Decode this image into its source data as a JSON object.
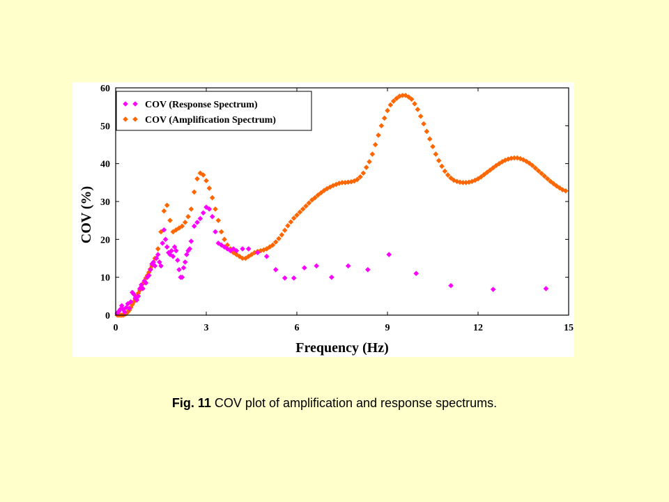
{
  "caption": {
    "label": "Fig. 11",
    "text": "COV plot of amplification and response spectrums."
  },
  "chart_data": {
    "type": "scatter",
    "xlabel": "Frequency (Hz)",
    "ylabel": "COV (%)",
    "xlim": [
      0,
      15
    ],
    "ylim": [
      0,
      60
    ],
    "xticks": [
      0,
      3,
      6,
      9,
      12,
      15
    ],
    "yticks": [
      0,
      10,
      20,
      30,
      40,
      50,
      60
    ],
    "grid": false,
    "legend_position": "top-left",
    "marker": "diamond",
    "series": [
      {
        "name": "COV (Response Spectrum)",
        "color": "#FF00FF",
        "points": [
          [
            0.05,
            0.5
          ],
          [
            0.1,
            1.0
          ],
          [
            0.15,
            1.5
          ],
          [
            0.2,
            2.5
          ],
          [
            0.25,
            1.5
          ],
          [
            0.3,
            0.8
          ],
          [
            0.35,
            2.0
          ],
          [
            0.4,
            3.0
          ],
          [
            0.45,
            1.8
          ],
          [
            0.5,
            3.5
          ],
          [
            0.55,
            6.0
          ],
          [
            0.6,
            5.5
          ],
          [
            0.65,
            4.5
          ],
          [
            0.7,
            4.0
          ],
          [
            0.75,
            5.0
          ],
          [
            0.8,
            7.0
          ],
          [
            0.85,
            8.0
          ],
          [
            0.9,
            7.0
          ],
          [
            0.95,
            9.0
          ],
          [
            1.0,
            8.5
          ],
          [
            1.05,
            10.0
          ],
          [
            1.1,
            10.5
          ],
          [
            1.15,
            12.0
          ],
          [
            1.2,
            13.5
          ],
          [
            1.25,
            14.0
          ],
          [
            1.3,
            13.0
          ],
          [
            1.35,
            15.0
          ],
          [
            1.4,
            16.0
          ],
          [
            1.45,
            14.0
          ],
          [
            1.5,
            13.0
          ],
          [
            1.55,
            19.0
          ],
          [
            1.6,
            22.5
          ],
          [
            1.65,
            20.0
          ],
          [
            1.7,
            18.0
          ],
          [
            1.75,
            16.5
          ],
          [
            1.8,
            16.0
          ],
          [
            1.85,
            17.0
          ],
          [
            1.9,
            15.5
          ],
          [
            1.95,
            18.0
          ],
          [
            2.0,
            17.0
          ],
          [
            2.05,
            14.5
          ],
          [
            2.1,
            12.0
          ],
          [
            2.15,
            10.0
          ],
          [
            2.2,
            10.0
          ],
          [
            2.25,
            12.5
          ],
          [
            2.3,
            14.0
          ],
          [
            2.35,
            16.0
          ],
          [
            2.4,
            17.0
          ],
          [
            2.45,
            17.5
          ],
          [
            2.5,
            19.5
          ],
          [
            2.6,
            23.5
          ],
          [
            2.7,
            24.5
          ],
          [
            2.8,
            25.5
          ],
          [
            2.9,
            27.0
          ],
          [
            3.0,
            28.5
          ],
          [
            3.1,
            28.0
          ],
          [
            3.2,
            26.0
          ],
          [
            3.3,
            22.0
          ],
          [
            3.4,
            19.0
          ],
          [
            3.5,
            18.5
          ],
          [
            3.6,
            18.0
          ],
          [
            3.7,
            17.5
          ],
          [
            3.8,
            17.0
          ],
          [
            3.9,
            17.5
          ],
          [
            4.0,
            17.0
          ],
          [
            4.2,
            17.5
          ],
          [
            4.4,
            17.5
          ],
          [
            4.7,
            16.5
          ],
          [
            5.0,
            15.5
          ],
          [
            5.3,
            12.0
          ],
          [
            5.6,
            9.8
          ],
          [
            5.9,
            9.8
          ],
          [
            6.25,
            12.5
          ],
          [
            6.65,
            13.0
          ],
          [
            7.15,
            10.0
          ],
          [
            7.7,
            13.0
          ],
          [
            8.35,
            12.0
          ],
          [
            9.05,
            16.0
          ],
          [
            9.95,
            11.0
          ],
          [
            11.1,
            7.8
          ],
          [
            12.5,
            6.8
          ],
          [
            14.25,
            7.0
          ]
        ]
      },
      {
        "name": "COV (Amplification Spectrum)",
        "color": "#FF6600",
        "points": [
          [
            0.05,
            0.0
          ],
          [
            0.1,
            0.0
          ],
          [
            0.15,
            0.0
          ],
          [
            0.2,
            0.0
          ],
          [
            0.25,
            0.0
          ],
          [
            0.3,
            0.2
          ],
          [
            0.35,
            0.4
          ],
          [
            0.4,
            0.8
          ],
          [
            0.45,
            1.3
          ],
          [
            0.5,
            2.0
          ],
          [
            0.55,
            2.8
          ],
          [
            0.6,
            3.5
          ],
          [
            0.65,
            4.2
          ],
          [
            0.7,
            5.0
          ],
          [
            0.75,
            5.8
          ],
          [
            0.8,
            6.6
          ],
          [
            0.85,
            7.5
          ],
          [
            0.9,
            8.3
          ],
          [
            0.95,
            9.0
          ],
          [
            1.0,
            9.8
          ],
          [
            1.05,
            10.5
          ],
          [
            1.1,
            11.3
          ],
          [
            1.15,
            12.2
          ],
          [
            1.2,
            13.0
          ],
          [
            1.3,
            15.0
          ],
          [
            1.4,
            17.5
          ],
          [
            1.5,
            22.0
          ],
          [
            1.6,
            27.5
          ],
          [
            1.7,
            29.0
          ],
          [
            1.8,
            25.0
          ],
          [
            1.9,
            22.0
          ],
          [
            2.0,
            22.5
          ],
          [
            2.1,
            23.0
          ],
          [
            2.2,
            23.5
          ],
          [
            2.3,
            24.5
          ],
          [
            2.4,
            26.0
          ],
          [
            2.5,
            28.0
          ],
          [
            2.6,
            32.5
          ],
          [
            2.7,
            36.0
          ],
          [
            2.8,
            37.5
          ],
          [
            2.9,
            37.0
          ],
          [
            3.0,
            35.5
          ],
          [
            3.1,
            33.5
          ],
          [
            3.2,
            31.0
          ],
          [
            3.3,
            28.0
          ],
          [
            3.4,
            25.0
          ],
          [
            3.5,
            22.0
          ],
          [
            3.6,
            20.0
          ],
          [
            3.7,
            18.5
          ],
          [
            3.8,
            17.5
          ],
          [
            3.9,
            16.5
          ],
          [
            4.0,
            16.0
          ],
          [
            4.1,
            15.5
          ],
          [
            4.2,
            15.0
          ],
          [
            4.3,
            15.0
          ],
          [
            4.4,
            15.5
          ],
          [
            4.5,
            16.0
          ],
          [
            4.6,
            16.5
          ],
          [
            4.7,
            16.8
          ],
          [
            4.8,
            17.0
          ],
          [
            4.9,
            17.2
          ],
          [
            5.0,
            17.5
          ],
          [
            5.1,
            18.0
          ],
          [
            5.2,
            18.5
          ],
          [
            5.3,
            19.3
          ],
          [
            5.4,
            20.2
          ],
          [
            5.5,
            21.2
          ],
          [
            5.6,
            22.4
          ],
          [
            5.7,
            23.6
          ],
          [
            5.8,
            24.6
          ],
          [
            5.9,
            25.6
          ],
          [
            6.0,
            26.4
          ],
          [
            6.1,
            27.2
          ],
          [
            6.2,
            28.0
          ],
          [
            6.3,
            28.8
          ],
          [
            6.4,
            29.6
          ],
          [
            6.5,
            30.4
          ],
          [
            6.6,
            31.0
          ],
          [
            6.7,
            31.7
          ],
          [
            6.8,
            32.3
          ],
          [
            6.9,
            32.9
          ],
          [
            7.0,
            33.4
          ],
          [
            7.1,
            33.8
          ],
          [
            7.2,
            34.2
          ],
          [
            7.3,
            34.5
          ],
          [
            7.4,
            34.8
          ],
          [
            7.5,
            35.0
          ],
          [
            7.6,
            35.0
          ],
          [
            7.7,
            35.1
          ],
          [
            7.8,
            35.2
          ],
          [
            7.9,
            35.4
          ],
          [
            8.0,
            35.8
          ],
          [
            8.1,
            36.5
          ],
          [
            8.2,
            37.5
          ],
          [
            8.3,
            39.0
          ],
          [
            8.4,
            40.5
          ],
          [
            8.5,
            42.5
          ],
          [
            8.6,
            45.0
          ],
          [
            8.7,
            47.5
          ],
          [
            8.8,
            50.0
          ],
          [
            8.9,
            52.0
          ],
          [
            9.0,
            54.0
          ],
          [
            9.1,
            55.5
          ],
          [
            9.2,
            56.5
          ],
          [
            9.3,
            57.2
          ],
          [
            9.4,
            57.8
          ],
          [
            9.5,
            58.0
          ],
          [
            9.6,
            58.0
          ],
          [
            9.7,
            57.6
          ],
          [
            9.8,
            57.0
          ],
          [
            9.9,
            55.8
          ],
          [
            10.0,
            54.3
          ],
          [
            10.1,
            52.5
          ],
          [
            10.2,
            50.5
          ],
          [
            10.3,
            48.5
          ],
          [
            10.4,
            46.5
          ],
          [
            10.5,
            44.5
          ],
          [
            10.6,
            42.5
          ],
          [
            10.7,
            40.8
          ],
          [
            10.8,
            39.3
          ],
          [
            10.9,
            38.0
          ],
          [
            11.0,
            37.0
          ],
          [
            11.1,
            36.2
          ],
          [
            11.2,
            35.6
          ],
          [
            11.3,
            35.3
          ],
          [
            11.4,
            35.1
          ],
          [
            11.5,
            35.0
          ],
          [
            11.6,
            35.0
          ],
          [
            11.7,
            35.1
          ],
          [
            11.8,
            35.3
          ],
          [
            11.9,
            35.6
          ],
          [
            12.0,
            36.0
          ],
          [
            12.1,
            36.5
          ],
          [
            12.2,
            37.1
          ],
          [
            12.3,
            37.7
          ],
          [
            12.4,
            38.3
          ],
          [
            12.5,
            38.9
          ],
          [
            12.6,
            39.5
          ],
          [
            12.7,
            40.0
          ],
          [
            12.8,
            40.5
          ],
          [
            12.9,
            40.9
          ],
          [
            13.0,
            41.2
          ],
          [
            13.1,
            41.4
          ],
          [
            13.2,
            41.5
          ],
          [
            13.3,
            41.5
          ],
          [
            13.4,
            41.3
          ],
          [
            13.5,
            41.0
          ],
          [
            13.6,
            40.6
          ],
          [
            13.7,
            40.1
          ],
          [
            13.8,
            39.5
          ],
          [
            13.9,
            38.8
          ],
          [
            14.0,
            38.1
          ],
          [
            14.1,
            37.4
          ],
          [
            14.2,
            36.7
          ],
          [
            14.3,
            36.0
          ],
          [
            14.4,
            35.3
          ],
          [
            14.5,
            34.7
          ],
          [
            14.6,
            34.1
          ],
          [
            14.7,
            33.6
          ],
          [
            14.8,
            33.1
          ],
          [
            14.9,
            32.8
          ]
        ]
      }
    ]
  }
}
